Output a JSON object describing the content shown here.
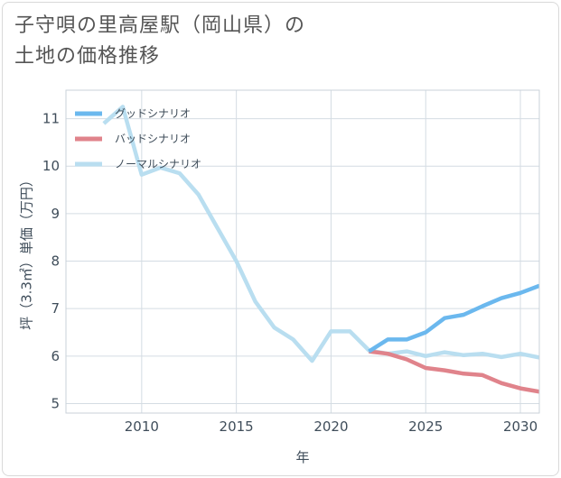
{
  "title": {
    "line1": "子守唄の里高屋駅（岡山県）の",
    "line2": "土地の価格推移"
  },
  "chart_data": {
    "type": "line",
    "xlabel": "年",
    "ylabel": "坪（3.3㎡）単価（万円）",
    "xlim": [
      2006,
      2031
    ],
    "ylim": [
      4.8,
      11.6
    ],
    "x_ticks": [
      2010,
      2015,
      2020,
      2025,
      2030
    ],
    "y_ticks": [
      5,
      6,
      7,
      8,
      9,
      10,
      11
    ],
    "grid": true,
    "legend_position": "top-left",
    "series": [
      {
        "name": "グッドシナリオ",
        "color": "#6bb8ee",
        "x": [
          2022,
          2023,
          2024,
          2025,
          2026,
          2027,
          2028,
          2029,
          2030,
          2031
        ],
        "y": [
          6.1,
          6.35,
          6.35,
          6.5,
          6.8,
          6.87,
          7.05,
          7.22,
          7.33,
          7.48
        ]
      },
      {
        "name": "バッドシナリオ",
        "color": "#e0838b",
        "x": [
          2022,
          2023,
          2024,
          2025,
          2026,
          2027,
          2028,
          2029,
          2030,
          2031
        ],
        "y": [
          6.1,
          6.05,
          5.93,
          5.75,
          5.7,
          5.63,
          5.6,
          5.43,
          5.32,
          5.25
        ]
      },
      {
        "name": "ノーマルシナリオ",
        "color": "#b9def0",
        "x": [
          2008,
          2009,
          2010,
          2011,
          2012,
          2013,
          2014,
          2015,
          2016,
          2017,
          2018,
          2019,
          2020,
          2021,
          2022,
          2023,
          2024,
          2025,
          2026,
          2027,
          2028,
          2029,
          2030,
          2031
        ],
        "y": [
          10.9,
          11.25,
          9.82,
          9.97,
          9.85,
          9.4,
          8.7,
          8.0,
          7.15,
          6.6,
          6.35,
          5.9,
          6.52,
          6.52,
          6.12,
          6.05,
          6.1,
          6.0,
          6.08,
          6.02,
          6.05,
          5.98,
          6.05,
          5.97
        ]
      }
    ]
  }
}
